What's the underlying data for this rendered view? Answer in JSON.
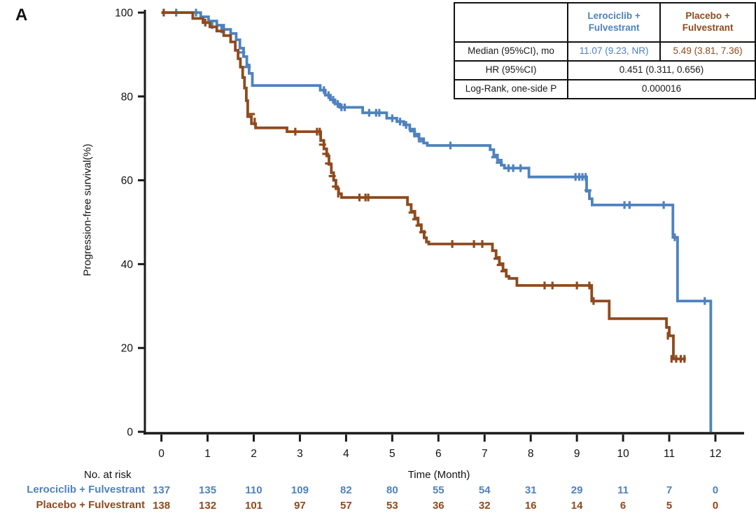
{
  "panel_label": "A",
  "colors": {
    "lerociclib": "#4E82BE",
    "placebo": "#8E4A1D",
    "axis": "#1a1a1a"
  },
  "stats_table": {
    "col_headers": [
      "",
      "Lerociclib +\nFulvestrant",
      "Placebo +\nFulvestrant"
    ],
    "rows": [
      {
        "label": "Median (95%CI), mo",
        "lerociclib": "11.07 (9.23, NR)",
        "placebo": "5.49 (3.81, 7.36)"
      },
      {
        "label": "HR (95%CI)",
        "value": "0.451 (0.311, 0.656)"
      },
      {
        "label": "Log-Rank, one-side P",
        "value": "0.000016"
      }
    ]
  },
  "chart_data": {
    "type": "line",
    "subtype": "kaplan-meier-step",
    "title": "",
    "xlabel": "Time (Month)",
    "ylabel": "Progression-free survival(%)",
    "xlim": [
      0,
      12.6
    ],
    "ylim": [
      0,
      100
    ],
    "xticks": [
      0,
      1,
      2,
      3,
      4,
      5,
      6,
      7,
      8,
      9,
      10,
      11,
      12
    ],
    "yticks": [
      0,
      20,
      40,
      60,
      80,
      100
    ],
    "grid": false,
    "legend_position": "none",
    "series": [
      {
        "name": "Lerociclib + Fulvestrant",
        "color": "#4E82BE",
        "steps": [
          [
            0,
            100
          ],
          [
            0.85,
            99
          ],
          [
            1.02,
            98
          ],
          [
            1.2,
            97
          ],
          [
            1.35,
            96
          ],
          [
            1.5,
            95
          ],
          [
            1.62,
            93.5
          ],
          [
            1.7,
            91.5
          ],
          [
            1.78,
            89.5
          ],
          [
            1.85,
            87.5
          ],
          [
            1.9,
            85.5
          ],
          [
            1.97,
            82.6
          ],
          [
            3.44,
            81.5
          ],
          [
            3.55,
            80.3
          ],
          [
            3.66,
            79.2
          ],
          [
            3.76,
            78.2
          ],
          [
            3.86,
            77.4
          ],
          [
            4.36,
            76.1
          ],
          [
            4.88,
            74.8
          ],
          [
            5.1,
            74
          ],
          [
            5.25,
            73.2
          ],
          [
            5.38,
            72.2
          ],
          [
            5.48,
            71
          ],
          [
            5.58,
            69.9
          ],
          [
            5.68,
            68.9
          ],
          [
            5.76,
            68.3
          ],
          [
            7.12,
            67.3
          ],
          [
            7.2,
            66
          ],
          [
            7.28,
            64.8
          ],
          [
            7.36,
            63.6
          ],
          [
            7.43,
            62.9
          ],
          [
            7.96,
            60.8
          ],
          [
            9.21,
            57.4
          ],
          [
            9.27,
            55.6
          ],
          [
            9.33,
            54.1
          ],
          [
            11.08,
            46.4
          ],
          [
            11.18,
            31.2
          ],
          [
            11.9,
            0
          ]
        ],
        "censors": [
          [
            0.32,
            100,
            "v"
          ],
          [
            0.75,
            100,
            "v"
          ],
          [
            1.1,
            97,
            "v"
          ],
          [
            1.3,
            96,
            "v"
          ],
          [
            1.74,
            90.5,
            "h"
          ],
          [
            1.86,
            87,
            "h"
          ],
          [
            3.52,
            81.5,
            "v"
          ],
          [
            3.62,
            80.3,
            "v"
          ],
          [
            3.72,
            79.2,
            "v"
          ],
          [
            3.82,
            78.2,
            "v"
          ],
          [
            3.9,
            77.4,
            "v"
          ],
          [
            3.97,
            77.4,
            "v"
          ],
          [
            4.5,
            76.1,
            "v"
          ],
          [
            4.65,
            76.1,
            "v"
          ],
          [
            4.72,
            76.1,
            "v"
          ],
          [
            5.0,
            74.8,
            "v"
          ],
          [
            5.17,
            74,
            "v"
          ],
          [
            5.3,
            73.2,
            "v"
          ],
          [
            5.44,
            71.7,
            "h"
          ],
          [
            5.53,
            70.5,
            "h"
          ],
          [
            5.63,
            69.3,
            "h"
          ],
          [
            6.26,
            68.3,
            "v"
          ],
          [
            7.22,
            65.5,
            "h"
          ],
          [
            7.32,
            64.2,
            "h"
          ],
          [
            7.52,
            62.9,
            "v"
          ],
          [
            7.62,
            62.9,
            "v"
          ],
          [
            7.78,
            62.9,
            "v"
          ],
          [
            8.97,
            60.8,
            "v"
          ],
          [
            9.05,
            60.8,
            "v"
          ],
          [
            9.12,
            60.8,
            "v"
          ],
          [
            9.19,
            60.8,
            "v"
          ],
          [
            9.24,
            57.6,
            "h"
          ],
          [
            10.03,
            54.1,
            "v"
          ],
          [
            10.14,
            54.1,
            "v"
          ],
          [
            10.88,
            54.1,
            "v"
          ],
          [
            11.12,
            46.4,
            "v"
          ],
          [
            11.77,
            31.2,
            "v"
          ]
        ]
      },
      {
        "name": "Placebo + Fulvestrant",
        "color": "#8E4A1D",
        "steps": [
          [
            0,
            100
          ],
          [
            0.68,
            98.6
          ],
          [
            0.9,
            97.6
          ],
          [
            1.05,
            96.6
          ],
          [
            1.2,
            95.6
          ],
          [
            1.35,
            94.5
          ],
          [
            1.5,
            93
          ],
          [
            1.6,
            91
          ],
          [
            1.66,
            89
          ],
          [
            1.71,
            87
          ],
          [
            1.76,
            84.5
          ],
          [
            1.8,
            82
          ],
          [
            1.84,
            79
          ],
          [
            1.87,
            75.2
          ],
          [
            1.95,
            73.5
          ],
          [
            2.04,
            72.5
          ],
          [
            2.72,
            71.6
          ],
          [
            3.45,
            69.5
          ],
          [
            3.52,
            67.5
          ],
          [
            3.58,
            65.8
          ],
          [
            3.63,
            63.8
          ],
          [
            3.68,
            61.8
          ],
          [
            3.73,
            60
          ],
          [
            3.78,
            58
          ],
          [
            3.84,
            56.8
          ],
          [
            3.9,
            55.9
          ],
          [
            5.33,
            54.2
          ],
          [
            5.41,
            52.6
          ],
          [
            5.49,
            51
          ],
          [
            5.56,
            49.4
          ],
          [
            5.63,
            47.8
          ],
          [
            5.69,
            46.3
          ],
          [
            5.74,
            45.3
          ],
          [
            5.79,
            44.8
          ],
          [
            7.17,
            43.2
          ],
          [
            7.25,
            41.6
          ],
          [
            7.32,
            40.1
          ],
          [
            7.4,
            38.6
          ],
          [
            7.47,
            37.1
          ],
          [
            7.53,
            36.6
          ],
          [
            7.7,
            34.9
          ],
          [
            9.32,
            31.2
          ],
          [
            9.7,
            27
          ],
          [
            10.94,
            24.9
          ],
          [
            11.0,
            22.9
          ],
          [
            11.09,
            17.4
          ],
          [
            11.36,
            17.4
          ]
        ],
        "censors": [
          [
            0.05,
            100,
            "v"
          ],
          [
            0.95,
            97.6,
            "v"
          ],
          [
            1.95,
            75.8,
            "h"
          ],
          [
            2.02,
            74,
            "v"
          ],
          [
            2.9,
            71.6,
            "v"
          ],
          [
            3.37,
            71.6,
            "v"
          ],
          [
            3.43,
            71.6,
            "v"
          ],
          [
            3.49,
            68.5,
            "h"
          ],
          [
            3.56,
            66.3,
            "h"
          ],
          [
            3.62,
            64,
            "h"
          ],
          [
            3.7,
            61,
            "h"
          ],
          [
            3.77,
            58.5,
            "h"
          ],
          [
            3.83,
            56.8,
            "v"
          ],
          [
            4.29,
            55.9,
            "v"
          ],
          [
            4.42,
            55.9,
            "v"
          ],
          [
            4.48,
            55.9,
            "v"
          ],
          [
            5.43,
            52.3,
            "h"
          ],
          [
            5.51,
            50.7,
            "h"
          ],
          [
            5.58,
            49.2,
            "h"
          ],
          [
            5.66,
            47.6,
            "h"
          ],
          [
            6.3,
            44.8,
            "v"
          ],
          [
            6.77,
            44.8,
            "v"
          ],
          [
            6.95,
            44.8,
            "v"
          ],
          [
            7.27,
            41.3,
            "h"
          ],
          [
            7.34,
            39.8,
            "h"
          ],
          [
            7.42,
            38.3,
            "h"
          ],
          [
            8.3,
            34.9,
            "v"
          ],
          [
            8.47,
            34.9,
            "v"
          ],
          [
            9.0,
            34.9,
            "v"
          ],
          [
            9.27,
            34.9,
            "v"
          ],
          [
            9.36,
            31.2,
            "v"
          ],
          [
            10.97,
            22.9,
            "v"
          ],
          [
            11.05,
            17.4,
            "v"
          ],
          [
            11.15,
            17.4,
            "v"
          ],
          [
            11.25,
            17.4,
            "v"
          ],
          [
            11.33,
            17.4,
            "v"
          ]
        ]
      }
    ]
  },
  "risk_table": {
    "title": "No. at risk",
    "months": [
      0,
      1,
      2,
      3,
      4,
      5,
      6,
      7,
      8,
      9,
      10,
      11,
      12
    ],
    "rows": [
      {
        "label": "Lerociclib + Fulvestrant",
        "color": "#4E82BE",
        "values": [
          137,
          135,
          110,
          109,
          82,
          80,
          55,
          54,
          31,
          29,
          11,
          7,
          0
        ]
      },
      {
        "label": "Placebo + Fulvestrant",
        "color": "#8E4A1D",
        "values": [
          138,
          132,
          101,
          97,
          57,
          53,
          36,
          32,
          16,
          14,
          6,
          5,
          0
        ]
      }
    ]
  }
}
